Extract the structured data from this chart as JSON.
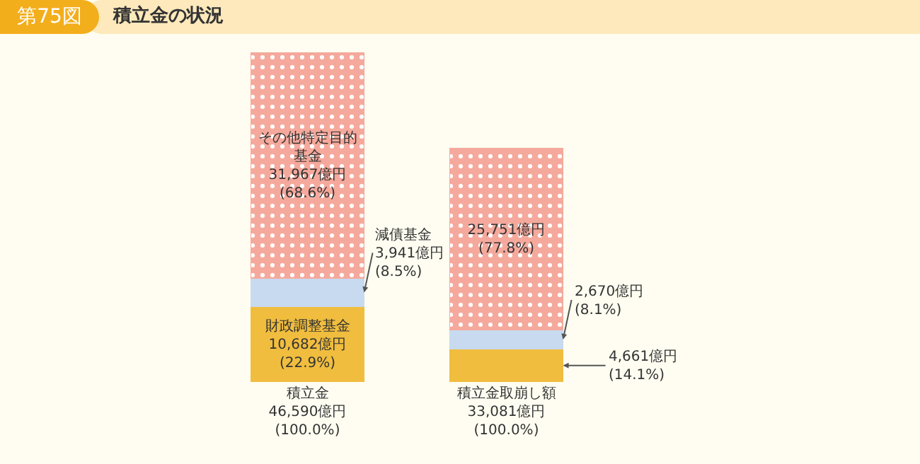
{
  "chart_data": {
    "type": "bar",
    "title": "積立金の状況",
    "annotations": [
      "第75図"
    ],
    "categories": [
      "積立金",
      "積立金取崩し額"
    ],
    "totals": [
      "46,590億円\n(100.0%)",
      "33,081億円\n(100.0%)"
    ],
    "stacked": true,
    "series": [
      {
        "color": "#f0bd3e",
        "values": [
          10682,
          4661
        ],
        "value_labels": [
          "財政調整基金\n10,682億円\n(22.9%)",
          "4,661億円\n(14.1%)"
        ]
      },
      {
        "color": "#c7daef",
        "values": [
          3941,
          2670
        ],
        "value_labels": [
          "減債基金\n3,941億円\n(8.5%)",
          "2,670億円\n(8.1%)"
        ]
      },
      {
        "color": "#f5a99c",
        "values": [
          31967,
          25751
        ],
        "value_labels": [
          "その他特定目的基金\n31,967億円\n(68.6%)",
          "25,751億円\n(77.8%)"
        ]
      }
    ]
  }
}
